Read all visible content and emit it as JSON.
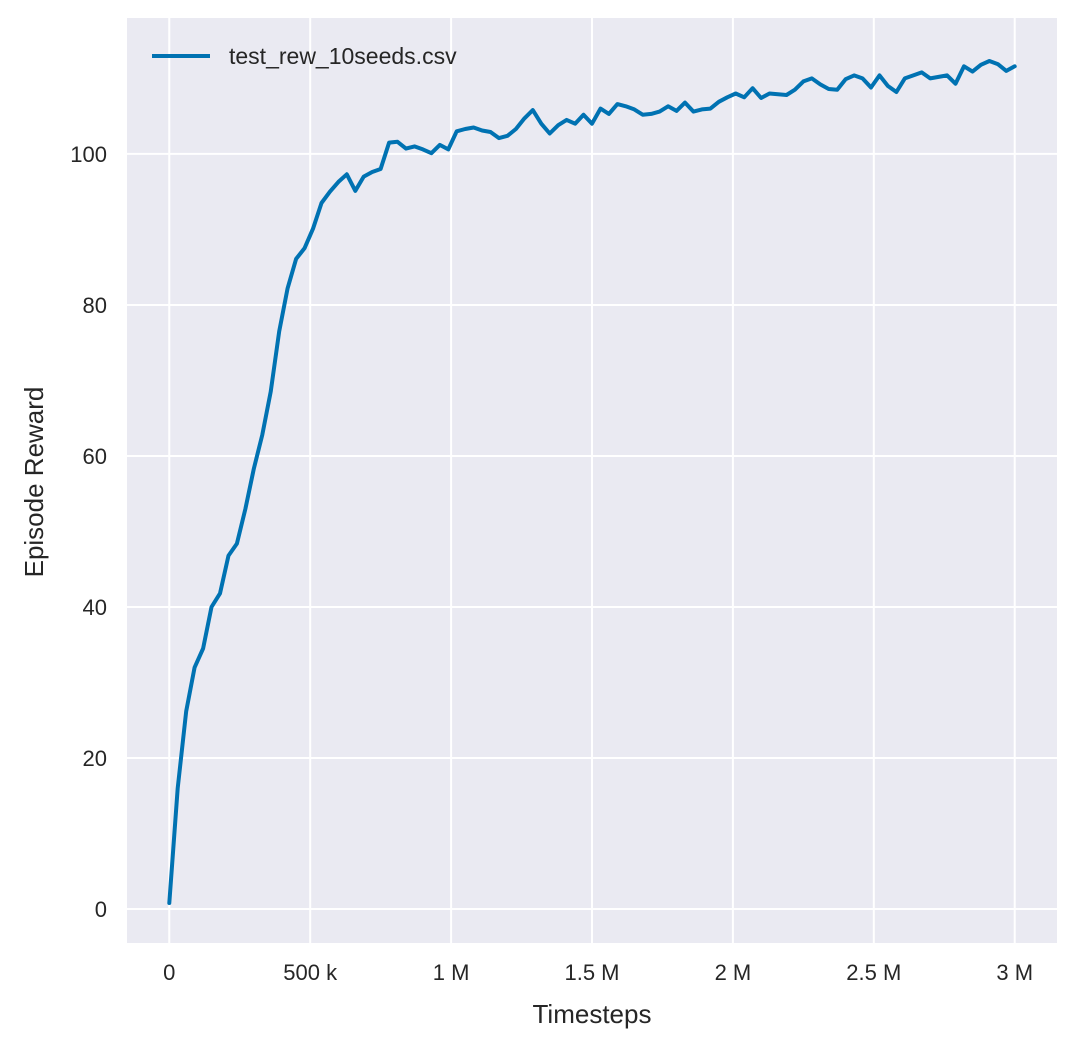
{
  "chart_data": {
    "type": "line",
    "title": "",
    "xlabel": "Timesteps",
    "ylabel": "Episode Reward",
    "xlim": [
      -150000,
      3150000
    ],
    "ylim": [
      -4.5,
      118
    ],
    "x_ticks": [
      0,
      500000,
      1000000,
      1500000,
      2000000,
      2500000,
      3000000
    ],
    "x_tick_labels": [
      "0",
      "500 k",
      "1 M",
      "1.5 M",
      "2 M",
      "2.5 M",
      "3 M"
    ],
    "y_ticks": [
      0,
      20,
      40,
      60,
      80,
      100
    ],
    "y_tick_labels": [
      "0",
      "20",
      "40",
      "60",
      "80",
      "100"
    ],
    "grid": true,
    "legend_position": "top-left",
    "series": [
      {
        "name": "test_rew_10seeds.csv",
        "color": "#0072b2",
        "x": [
          0,
          30000,
          60000,
          90000,
          120000,
          150000,
          180000,
          210000,
          240000,
          270000,
          300000,
          330000,
          360000,
          390000,
          420000,
          450000,
          480000,
          510000,
          540000,
          570000,
          600000,
          630000,
          660000,
          690000,
          720000,
          750000,
          780000,
          810000,
          840000,
          870000,
          900000,
          930000,
          960000,
          990000,
          1020000,
          1050000,
          1080000,
          1110000,
          1140000,
          1170000,
          1200000,
          1230000,
          1260000,
          1290000,
          1320000,
          1350000,
          1380000,
          1410000,
          1440000,
          1470000,
          1500000,
          1530000,
          1560000,
          1590000,
          1620000,
          1650000,
          1680000,
          1710000,
          1740000,
          1770000,
          1800000,
          1830000,
          1860000,
          1890000,
          1920000,
          1950000,
          1980000,
          2010000,
          2040000,
          2070000,
          2100000,
          2130000,
          2160000,
          2190000,
          2220000,
          2250000,
          2280000,
          2310000,
          2340000,
          2370000,
          2400000,
          2430000,
          2460000,
          2490000,
          2520000,
          2550000,
          2580000,
          2610000,
          2640000,
          2670000,
          2700000,
          2730000,
          2760000,
          2790000,
          2820000,
          2850000,
          2880000,
          2910000,
          2940000,
          2970000,
          3000000
        ],
        "y": [
          0.8,
          16.0,
          26.2,
          32.0,
          34.5,
          40.0,
          41.8,
          46.8,
          48.4,
          53.0,
          58.3,
          62.8,
          68.5,
          76.5,
          82.2,
          86.1,
          87.5,
          90.1,
          93.5,
          95.0,
          96.3,
          97.3,
          95.1,
          97.0,
          97.6,
          98.0,
          101.5,
          101.6,
          100.7,
          101.0,
          100.6,
          100.1,
          101.2,
          100.6,
          103.0,
          103.3,
          103.5,
          103.1,
          102.9,
          102.1,
          102.4,
          103.3,
          104.7,
          105.8,
          104.0,
          102.7,
          103.8,
          104.5,
          104.0,
          105.2,
          104.0,
          106.0,
          105.3,
          106.6,
          106.3,
          105.9,
          105.2,
          105.3,
          105.6,
          106.3,
          105.7,
          106.8,
          105.6,
          105.9,
          106.0,
          106.9,
          107.5,
          108.0,
          107.5,
          108.7,
          107.4,
          108.0,
          107.9,
          107.8,
          108.5,
          109.6,
          110.0,
          109.2,
          108.6,
          108.5,
          109.9,
          110.4,
          110.0,
          108.8,
          110.4,
          109.0,
          108.2,
          110.0,
          110.4,
          110.8,
          110.0,
          110.2,
          110.4,
          109.3,
          111.6,
          110.9,
          111.8,
          112.3,
          111.9,
          111.0,
          111.6
        ]
      }
    ]
  }
}
